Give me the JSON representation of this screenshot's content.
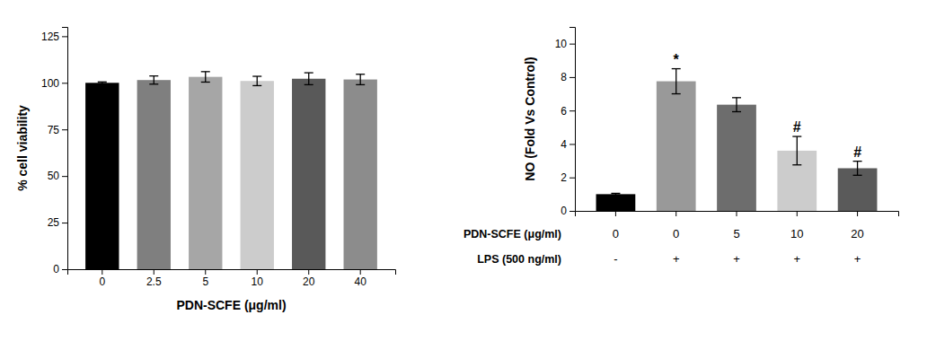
{
  "chart_data": [
    {
      "type": "bar",
      "categories": [
        "0",
        "2.5",
        "5",
        "10",
        "20",
        "40"
      ],
      "values": [
        100.0,
        101.5,
        103.2,
        101.0,
        102.2,
        101.8
      ],
      "errors": [
        0.5,
        2.2,
        2.8,
        2.5,
        3.2,
        2.8
      ],
      "colors": [
        "#000000",
        "#7f7f7f",
        "#a6a6a6",
        "#cccccc",
        "#595959",
        "#8c8c8c"
      ],
      "ylabel": "% cell viability",
      "xlabel": "PDN-SCFE (μg/ml)",
      "ylim": [
        0,
        130
      ],
      "yticks": [
        0,
        25,
        50,
        75,
        100,
        125
      ]
    },
    {
      "type": "bar",
      "categories": [
        [
          "0",
          "-"
        ],
        [
          "0",
          "+"
        ],
        [
          "5",
          "+"
        ],
        [
          "10",
          "+"
        ],
        [
          "20",
          "+"
        ]
      ],
      "values": [
        1.0,
        7.75,
        6.35,
        3.6,
        2.55
      ],
      "errors": [
        0.05,
        0.75,
        0.42,
        0.85,
        0.42
      ],
      "colors": [
        "#000000",
        "#999999",
        "#6d6d6d",
        "#cccccc",
        "#5a5a5a"
      ],
      "ylabel": "NO (Fold Vs Control)",
      "xlabel": [
        "PDN-SCFE (μg/ml)",
        "LPS (500 ng/ml)"
      ],
      "annotations": [
        null,
        "*",
        null,
        "#",
        "#"
      ],
      "ylim": [
        0,
        11
      ],
      "yticks": [
        0,
        2,
        4,
        6,
        8,
        10
      ]
    }
  ]
}
